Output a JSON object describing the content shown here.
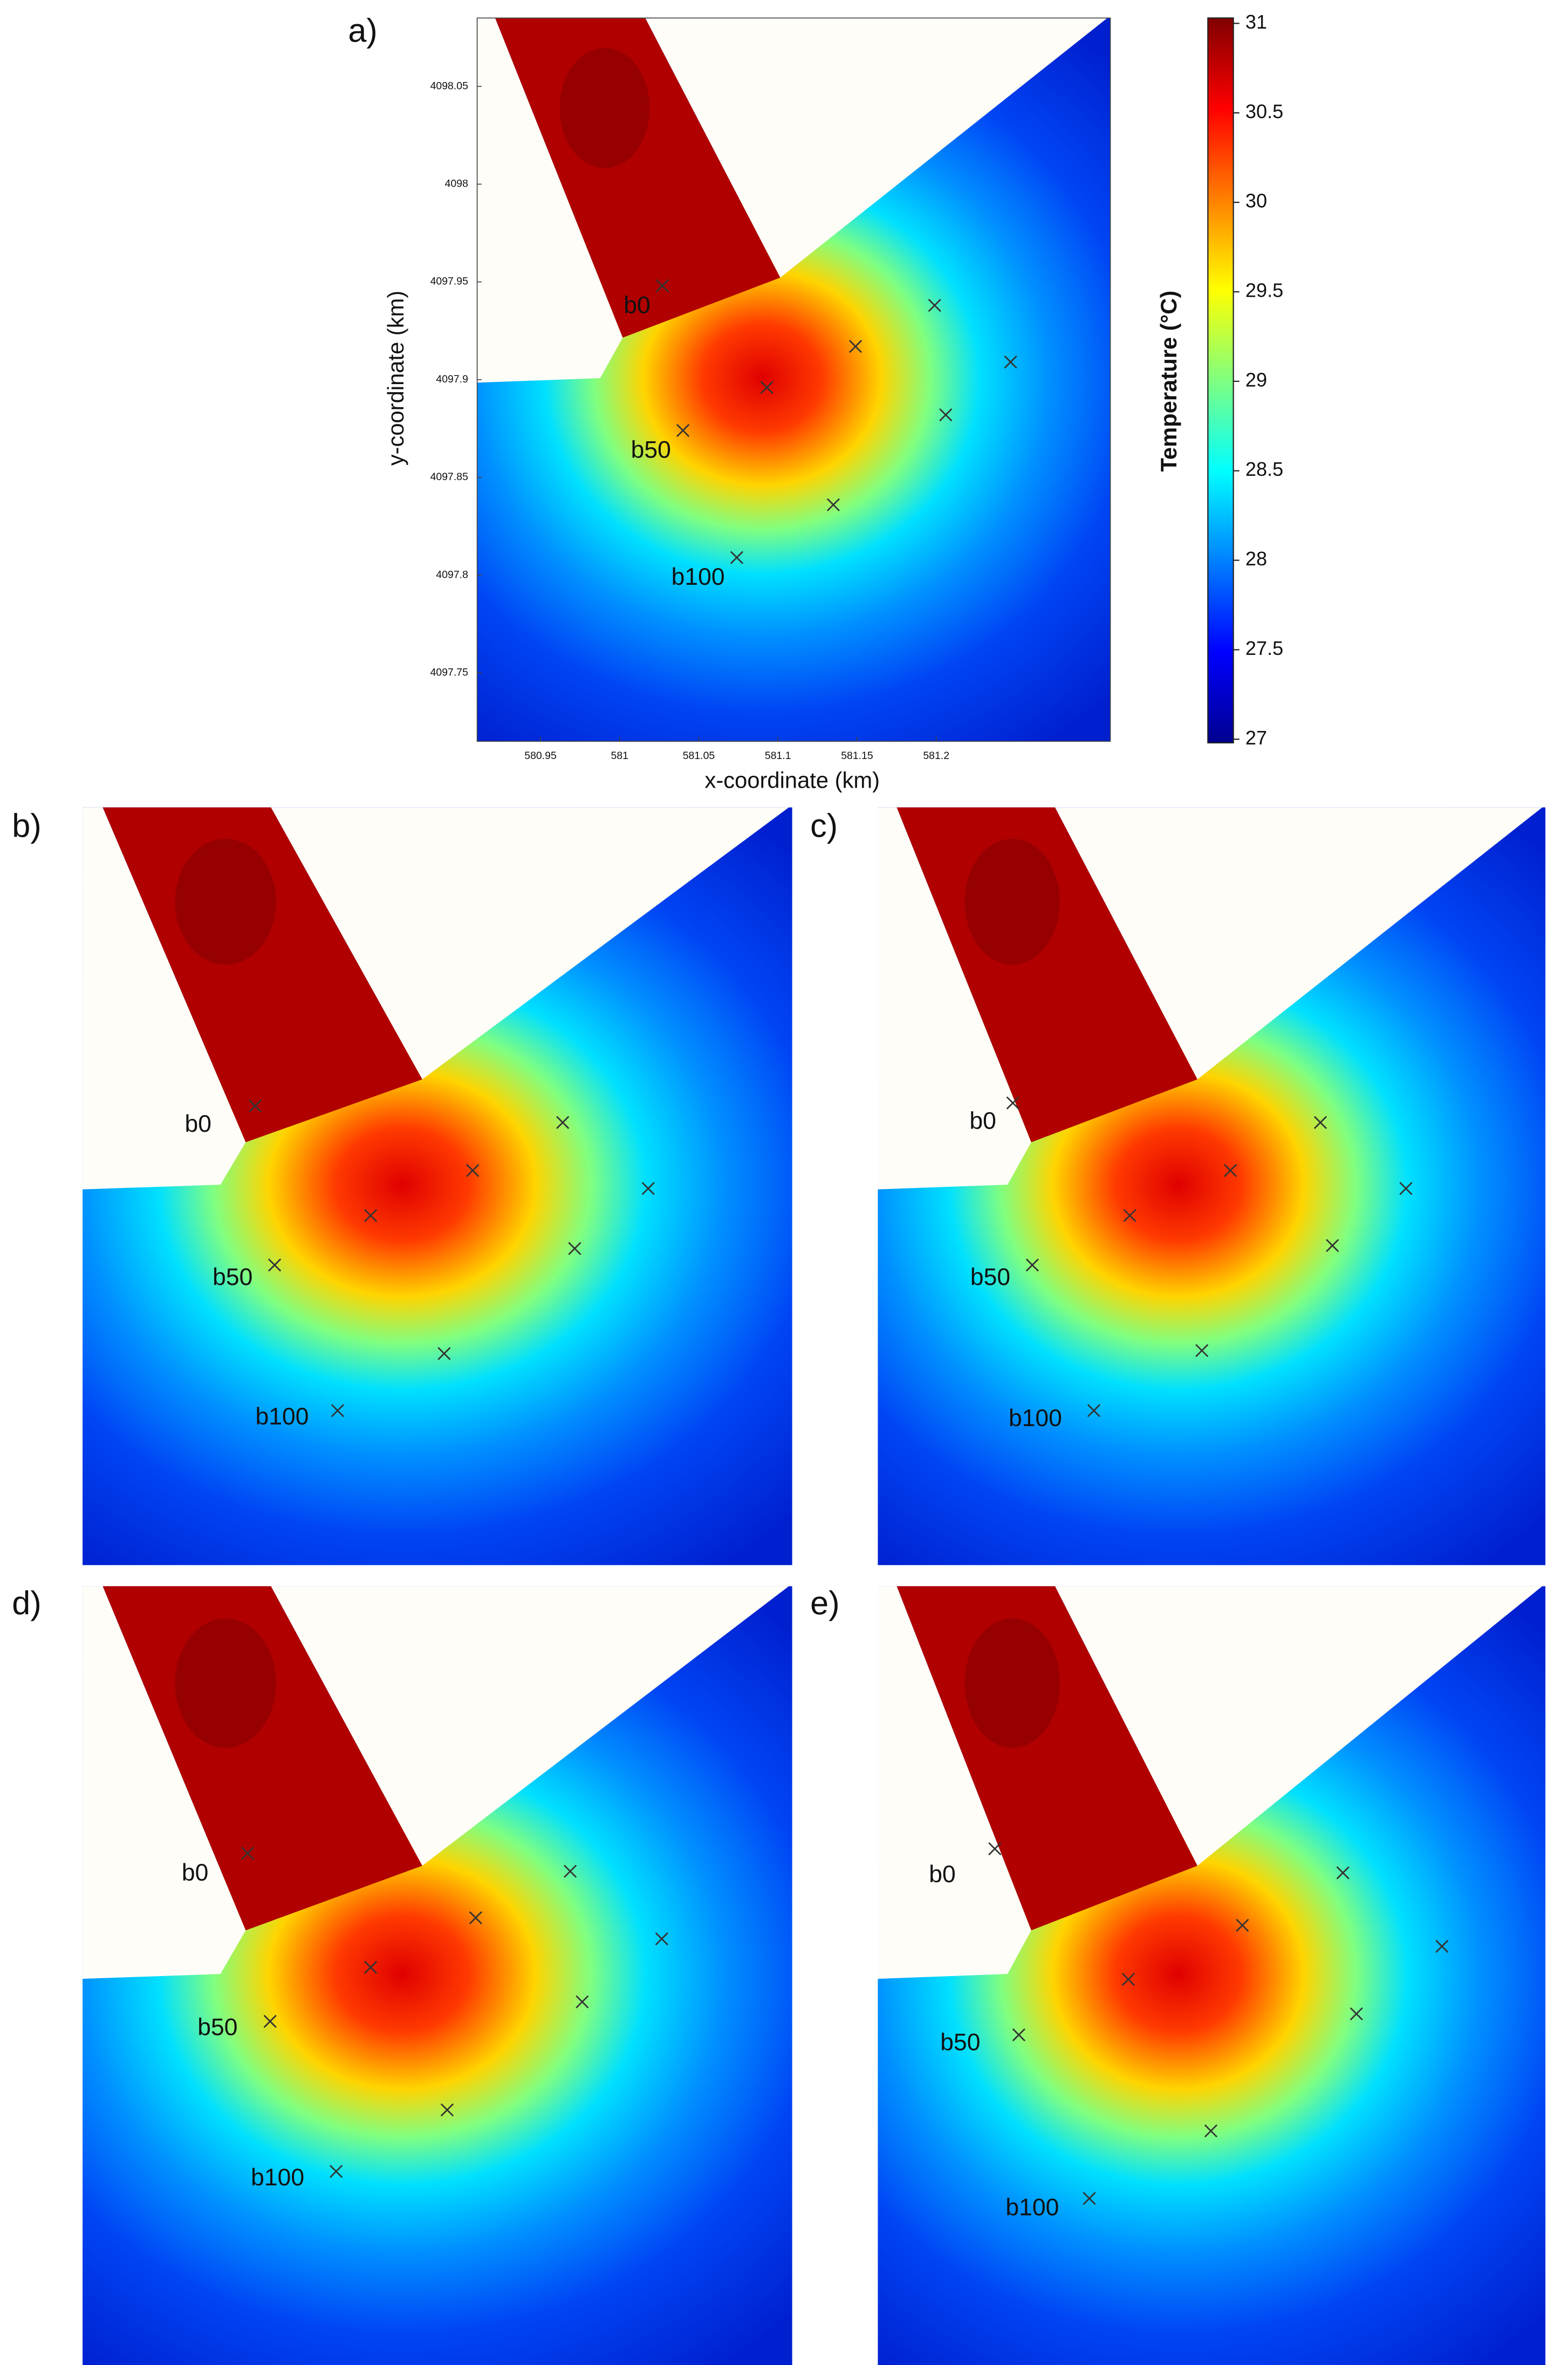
{
  "chart_data": {
    "type": "heatmap",
    "panel_label": "a)",
    "x_label": "x-coordinate (km)",
    "y_label": "y-coordinate (km)",
    "xlim": [
      580.91,
      581.31
    ],
    "ylim": [
      4097.715,
      4098.085
    ],
    "xticks": [
      580.95,
      581,
      581.05,
      581.1,
      581.15,
      581.2
    ],
    "yticks": [
      4097.75,
      4097.8,
      4097.85,
      4097.9,
      4097.95,
      4098,
      4098.05
    ],
    "colorbar_label": "Temperature (°C)",
    "clim": [
      26.98,
      31.03
    ],
    "colorbar_ticks": [
      27,
      27.5,
      28,
      28.5,
      29,
      29.5,
      30,
      30.5,
      31
    ],
    "stations": [
      {
        "label": "b0",
        "x": 581.027,
        "y": 4097.948
      },
      {
        "label": "b50",
        "x": 581.04,
        "y": 4097.874
      },
      {
        "label": "b100",
        "x": 581.074,
        "y": 4097.809
      },
      {
        "x": 581.093,
        "y": 4097.896
      },
      {
        "x": 581.149,
        "y": 4097.917
      },
      {
        "x": 581.199,
        "y": 4097.938
      },
      {
        "x": 581.247,
        "y": 4097.909
      },
      {
        "x": 581.206,
        "y": 4097.882
      },
      {
        "x": 581.135,
        "y": 4097.836
      }
    ]
  },
  "panels": [
    {
      "label": "b)",
      "station_labels": [
        "b0",
        "b50",
        "b100"
      ]
    },
    {
      "label": "c)",
      "station_labels": [
        "b0",
        "b50",
        "b100"
      ]
    },
    {
      "label": "d)",
      "station_labels": [
        "b0",
        "b50",
        "b100"
      ]
    },
    {
      "label": "e)",
      "station_labels": [
        "b0",
        "b50",
        "b100"
      ]
    }
  ]
}
